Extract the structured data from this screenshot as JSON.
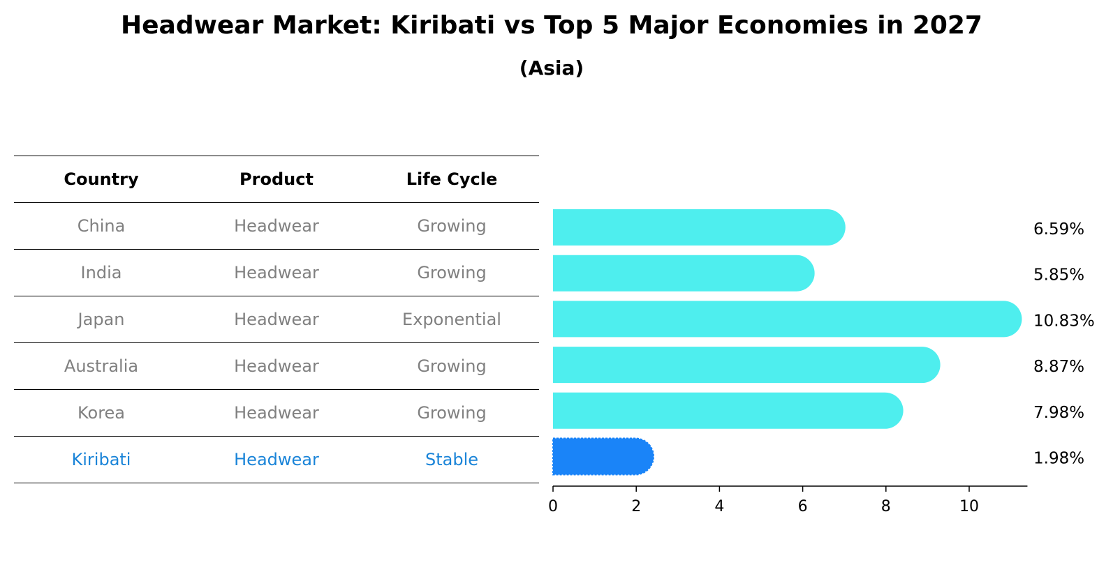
{
  "title": "Headwear Market: Kiribati vs Top 5 Major Economies in 2027",
  "subtitle": "(Asia)",
  "table": {
    "headers": [
      "Country",
      "Product",
      "Life Cycle"
    ],
    "rows": [
      {
        "country": "China",
        "product": "Headwear",
        "life_cycle": "Growing"
      },
      {
        "country": "India",
        "product": "Headwear",
        "life_cycle": "Growing"
      },
      {
        "country": "Japan",
        "product": "Headwear",
        "life_cycle": "Exponential"
      },
      {
        "country": "Australia",
        "product": "Headwear",
        "life_cycle": "Growing"
      },
      {
        "country": "Korea",
        "product": "Headwear",
        "life_cycle": "Growing"
      },
      {
        "country": "Kiribati",
        "product": "Headwear",
        "life_cycle": "Stable"
      }
    ]
  },
  "colors": {
    "bar": "#4eeeee",
    "highlight_bar": "#1a84f8",
    "highlight_text": "#1a84d8",
    "muted_text": "#808080"
  },
  "chart_data": {
    "type": "bar",
    "orientation": "horizontal",
    "title": "Headwear Market: Kiribati vs Top 5 Major Economies in 2027",
    "subtitle": "(Asia)",
    "categories": [
      "China",
      "India",
      "Japan",
      "Australia",
      "Korea",
      "Kiribati"
    ],
    "values": [
      6.59,
      5.85,
      10.83,
      8.87,
      7.98,
      1.98
    ],
    "value_labels": [
      "6.59%",
      "5.85%",
      "10.83%",
      "8.87%",
      "7.98%",
      "1.98%"
    ],
    "highlight": "Kiribati",
    "xlim": [
      0,
      11.4
    ],
    "xticks": [
      0,
      2,
      4,
      6,
      8,
      10
    ],
    "xlabel": "",
    "ylabel": "",
    "grid": false
  }
}
